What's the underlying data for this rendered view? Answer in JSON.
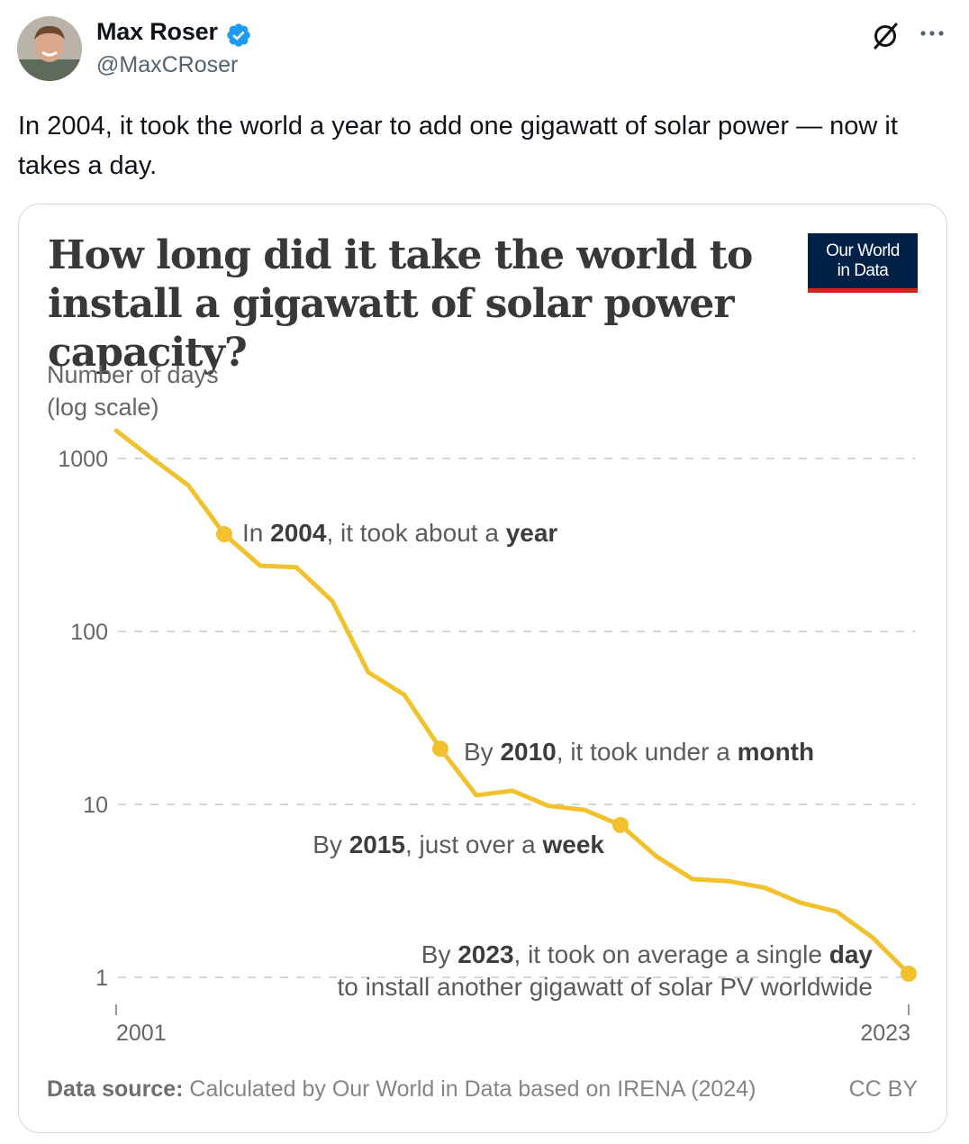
{
  "author": {
    "name": "Max Roser",
    "handle": "@MaxCRoser",
    "verified": true,
    "avatar_icon": "person-avatar"
  },
  "tweet": {
    "text": "In 2004, it took the world a year to add one gigawatt of solar power — now it takes a day."
  },
  "actions": {
    "grok_icon": "grok-icon",
    "more_icon": "more-horizontal-icon"
  },
  "colors": {
    "accent_line": "#f2c12e",
    "verified_blue": "#1d9bf0",
    "owid_navy": "#002147",
    "owid_red": "#ce261e"
  },
  "card": {
    "title": "How long did it take the world to install a gigawatt of solar power capacity?",
    "logo_line1": "Our World",
    "logo_line2": "in Data",
    "source_label": "Data source:",
    "source_text": "Calculated by Our World in Data based on IRENA (2024)",
    "license": "CC BY"
  },
  "chart_data": {
    "type": "line",
    "title": "How long did it take the world to install a gigawatt of solar power capacity?",
    "ylabel": "Number of days\n(log scale)",
    "y_scale": "log",
    "ylim": [
      1,
      1000
    ],
    "yticks": [
      "1000",
      "100",
      "10",
      "1"
    ],
    "x_tick_labels": [
      "2001",
      "2023"
    ],
    "xlim": [
      2001,
      2023
    ],
    "grid": "horizontal dashed",
    "series": [
      {
        "x": [
          2001,
          2002,
          2003,
          2004,
          2005,
          2006,
          2007,
          2008,
          2009,
          2010,
          2011,
          2012,
          2013,
          2014,
          2015,
          2016,
          2017,
          2018,
          2019,
          2020,
          2021,
          2022,
          2023
        ],
        "values": [
          1450,
          1000,
          700,
          365,
          240,
          235,
          150,
          58,
          43,
          21,
          11.3,
          12,
          9.8,
          9.3,
          7.6,
          5,
          3.7,
          3.6,
          3.3,
          2.7,
          2.4,
          1.7,
          1.05
        ]
      }
    ],
    "highlighted_years": [
      2004,
      2010,
      2015,
      2023
    ],
    "annotations": [
      {
        "prefix": "In ",
        "year": "2004",
        "middle": ", it took about a ",
        "unit": "year",
        "suffix": ""
      },
      {
        "prefix": "By ",
        "year": "2010",
        "middle": ", it took under a ",
        "unit": "month",
        "suffix": ""
      },
      {
        "prefix": "By ",
        "year": "2015",
        "middle": ", just over a ",
        "unit": "week",
        "suffix": ""
      },
      {
        "prefix": "By ",
        "year": "2023",
        "middle": ", it took on average a single ",
        "unit": "day",
        "suffix": "to install another gigawatt of solar PV worldwide"
      }
    ]
  }
}
